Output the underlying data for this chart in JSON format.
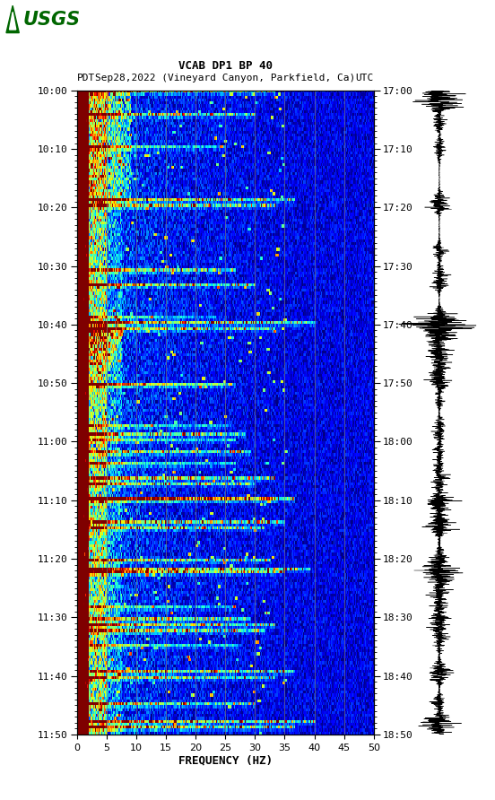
{
  "title_line1": "VCAB DP1 BP 40",
  "title_line2_left": "PDT",
  "title_line2_mid": "Sep28,2022 (Vineyard Canyon, Parkfield, Ca)",
  "title_line2_right": "UTC",
  "xlabel": "FREQUENCY (HZ)",
  "freq_min": 0,
  "freq_max": 50,
  "freq_ticks": [
    0,
    5,
    10,
    15,
    20,
    25,
    30,
    35,
    40,
    45,
    50
  ],
  "pdt_ticks": [
    "10:00",
    "10:10",
    "10:20",
    "10:30",
    "10:40",
    "10:50",
    "11:00",
    "11:10",
    "11:20",
    "11:30",
    "11:40",
    "11:50"
  ],
  "utc_ticks": [
    "17:00",
    "17:10",
    "17:20",
    "17:30",
    "17:40",
    "17:50",
    "18:00",
    "18:10",
    "18:20",
    "18:30",
    "18:40",
    "18:50"
  ],
  "fig_width": 5.52,
  "fig_height": 8.92,
  "bg_color": "#ffffff",
  "colormap": "jet",
  "vertical_grid_color": "#777777",
  "vertical_grid_freqs": [
    5,
    10,
    15,
    20,
    25,
    30,
    35,
    40,
    45
  ],
  "usgs_color": "#006600",
  "n_time_bins": 220,
  "n_freq_bins": 300,
  "noise_seed": 42
}
